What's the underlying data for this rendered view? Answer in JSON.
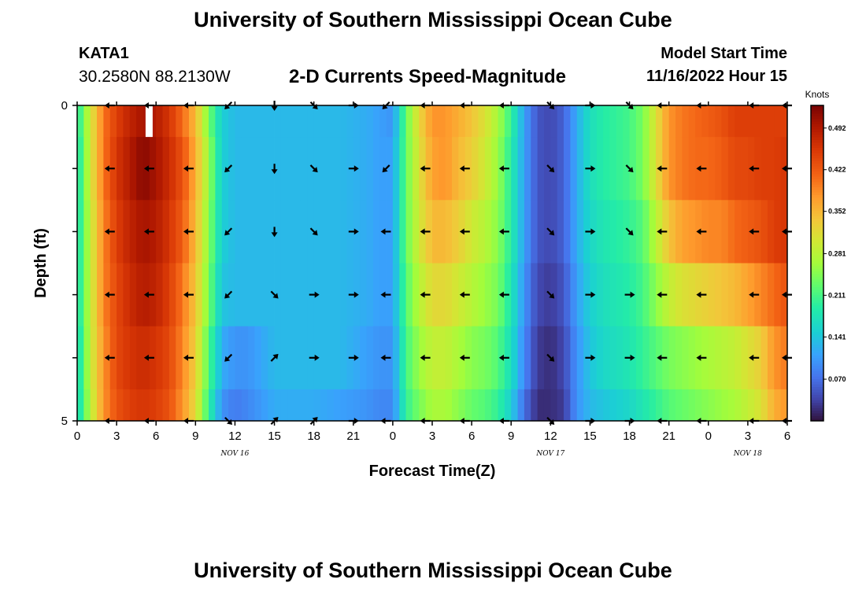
{
  "header": {
    "title": "University of Southern Mississippi Ocean Cube",
    "station_id": "KATA1",
    "station_coords": "30.2580N  88.2130W",
    "plot_title": "2-D Currents Speed-Magnitude",
    "model_start_label": "Model Start Time",
    "model_start_time": "11/16/2022 Hour 15"
  },
  "footer": {
    "title": "University of Southern Mississippi Ocean Cube"
  },
  "chart_data": {
    "type": "heatmap",
    "xlabel": "Forecast Time(Z)",
    "ylabel": "Depth (ft)",
    "x_tick_labels": [
      "0",
      "3",
      "6",
      "9",
      "12",
      "15",
      "18",
      "21",
      "0",
      "3",
      "6",
      "9",
      "12",
      "15",
      "18",
      "21",
      "0",
      "3",
      "6"
    ],
    "x_date_labels": [
      {
        "label": "NOV 16",
        "at_tick": 4
      },
      {
        "label": "NOV 17",
        "at_tick": 12
      },
      {
        "label": "NOV 18",
        "at_tick": 17
      }
    ],
    "y_range": [
      0,
      5
    ],
    "y_tick_labels": [
      {
        "depth": 0,
        "label": "0"
      },
      {
        "depth": 1,
        "label": ""
      },
      {
        "depth": 2,
        "label": ""
      },
      {
        "depth": 3,
        "label": ""
      },
      {
        "depth": 4,
        "label": ""
      },
      {
        "depth": 5,
        "label": "5"
      }
    ],
    "colorbar": {
      "units": "Knots",
      "min": 0.0,
      "max": 0.53,
      "ticks": [
        0.07,
        0.141,
        0.211,
        0.281,
        0.352,
        0.422,
        0.492
      ],
      "tick_labels": [
        "0.070",
        "0.141",
        "0.211",
        "0.281",
        "0.352",
        "0.422",
        "0.492"
      ]
    },
    "missing_data": {
      "hour": 5.5,
      "depth_range": [
        0,
        0.5
      ]
    },
    "speed_profile_keys": [
      {
        "h": 0,
        "s": [
          0.18,
          0.17,
          0.17,
          0.17,
          0.16,
          0.16
        ]
      },
      {
        "h": 1,
        "s": [
          0.3,
          0.3,
          0.29,
          0.29,
          0.29,
          0.28
        ]
      },
      {
        "h": 2,
        "s": [
          0.4,
          0.4,
          0.39,
          0.39,
          0.38,
          0.38
        ]
      },
      {
        "h": 3,
        "s": [
          0.45,
          0.46,
          0.45,
          0.44,
          0.44,
          0.43
        ]
      },
      {
        "h": 4,
        "s": [
          0.48,
          0.49,
          0.48,
          0.47,
          0.46,
          0.45
        ]
      },
      {
        "h": 5,
        "s": [
          0.5,
          0.52,
          0.5,
          0.49,
          0.47,
          0.46
        ]
      },
      {
        "h": 6,
        "s": [
          0.49,
          0.5,
          0.49,
          0.48,
          0.46,
          0.45
        ]
      },
      {
        "h": 7,
        "s": [
          0.46,
          0.47,
          0.46,
          0.45,
          0.44,
          0.43
        ]
      },
      {
        "h": 8,
        "s": [
          0.41,
          0.43,
          0.42,
          0.4,
          0.39,
          0.38
        ]
      },
      {
        "h": 9,
        "s": [
          0.35,
          0.36,
          0.35,
          0.34,
          0.33,
          0.32
        ]
      },
      {
        "h": 10,
        "s": [
          0.24,
          0.26,
          0.25,
          0.24,
          0.22,
          0.2
        ]
      },
      {
        "h": 11,
        "s": [
          0.15,
          0.15,
          0.15,
          0.14,
          0.12,
          0.1
        ]
      },
      {
        "h": 12,
        "s": [
          0.13,
          0.13,
          0.13,
          0.13,
          0.1,
          0.08
        ]
      },
      {
        "h": 13,
        "s": [
          0.13,
          0.13,
          0.13,
          0.13,
          0.1,
          0.09
        ]
      },
      {
        "h": 15,
        "s": [
          0.13,
          0.13,
          0.13,
          0.13,
          0.13,
          0.12
        ]
      },
      {
        "h": 18,
        "s": [
          0.13,
          0.13,
          0.13,
          0.13,
          0.13,
          0.12
        ]
      },
      {
        "h": 20,
        "s": [
          0.13,
          0.13,
          0.13,
          0.13,
          0.13,
          0.11
        ]
      },
      {
        "h": 22,
        "s": [
          0.12,
          0.12,
          0.12,
          0.12,
          0.11,
          0.1
        ]
      },
      {
        "h": 23,
        "s": [
          0.11,
          0.11,
          0.11,
          0.11,
          0.1,
          0.09
        ]
      },
      {
        "h": 24,
        "s": [
          0.1,
          0.11,
          0.11,
          0.11,
          0.1,
          0.09
        ]
      },
      {
        "h": 25,
        "s": [
          0.23,
          0.23,
          0.23,
          0.22,
          0.21,
          0.2
        ]
      },
      {
        "h": 26,
        "s": [
          0.32,
          0.31,
          0.3,
          0.28,
          0.26,
          0.24
        ]
      },
      {
        "h": 27,
        "s": [
          0.38,
          0.37,
          0.35,
          0.32,
          0.29,
          0.27
        ]
      },
      {
        "h": 28,
        "s": [
          0.38,
          0.38,
          0.35,
          0.32,
          0.29,
          0.27
        ]
      },
      {
        "h": 29,
        "s": [
          0.36,
          0.35,
          0.33,
          0.3,
          0.27,
          0.25
        ]
      },
      {
        "h": 30,
        "s": [
          0.34,
          0.33,
          0.3,
          0.28,
          0.25,
          0.23
        ]
      },
      {
        "h": 31,
        "s": [
          0.31,
          0.3,
          0.28,
          0.26,
          0.24,
          0.22
        ]
      },
      {
        "h": 32,
        "s": [
          0.27,
          0.26,
          0.25,
          0.24,
          0.22,
          0.2
        ]
      },
      {
        "h": 33,
        "s": [
          0.2,
          0.19,
          0.19,
          0.18,
          0.17,
          0.15
        ]
      },
      {
        "h": 34,
        "s": [
          0.11,
          0.11,
          0.11,
          0.1,
          0.09,
          0.07
        ]
      },
      {
        "h": 35,
        "s": [
          0.05,
          0.05,
          0.05,
          0.04,
          0.03,
          0.02
        ]
      },
      {
        "h": 36,
        "s": [
          0.04,
          0.04,
          0.04,
          0.03,
          0.02,
          0.02
        ]
      },
      {
        "h": 37,
        "s": [
          0.06,
          0.06,
          0.06,
          0.05,
          0.04,
          0.03
        ]
      },
      {
        "h": 38,
        "s": [
          0.12,
          0.12,
          0.12,
          0.11,
          0.1,
          0.1
        ]
      },
      {
        "h": 39,
        "s": [
          0.17,
          0.17,
          0.16,
          0.15,
          0.14,
          0.13
        ]
      },
      {
        "h": 40,
        "s": [
          0.19,
          0.19,
          0.18,
          0.17,
          0.16,
          0.14
        ]
      },
      {
        "h": 41,
        "s": [
          0.2,
          0.2,
          0.19,
          0.18,
          0.17,
          0.15
        ]
      },
      {
        "h": 42,
        "s": [
          0.21,
          0.21,
          0.2,
          0.19,
          0.18,
          0.16
        ]
      },
      {
        "h": 43,
        "s": [
          0.24,
          0.24,
          0.22,
          0.21,
          0.2,
          0.18
        ]
      },
      {
        "h": 44,
        "s": [
          0.31,
          0.31,
          0.28,
          0.25,
          0.22,
          0.2
        ]
      },
      {
        "h": 45,
        "s": [
          0.38,
          0.38,
          0.34,
          0.29,
          0.24,
          0.22
        ]
      },
      {
        "h": 46,
        "s": [
          0.4,
          0.4,
          0.37,
          0.31,
          0.25,
          0.23
        ]
      },
      {
        "h": 47,
        "s": [
          0.41,
          0.41,
          0.38,
          0.32,
          0.26,
          0.24
        ]
      },
      {
        "h": 48,
        "s": [
          0.42,
          0.41,
          0.39,
          0.33,
          0.27,
          0.25
        ]
      },
      {
        "h": 49,
        "s": [
          0.43,
          0.42,
          0.39,
          0.34,
          0.28,
          0.26
        ]
      },
      {
        "h": 50,
        "s": [
          0.45,
          0.44,
          0.41,
          0.35,
          0.29,
          0.27
        ]
      },
      {
        "h": 51,
        "s": [
          0.45,
          0.44,
          0.42,
          0.37,
          0.31,
          0.29
        ]
      },
      {
        "h": 52,
        "s": [
          0.45,
          0.45,
          0.43,
          0.39,
          0.33,
          0.31
        ]
      },
      {
        "h": 53,
        "s": [
          0.45,
          0.45,
          0.45,
          0.41,
          0.38,
          0.36
        ]
      },
      {
        "h": 54,
        "s": [
          0.45,
          0.46,
          0.46,
          0.43,
          0.4,
          0.38
        ]
      }
    ],
    "arrows": {
      "hours": [
        2.5,
        5.5,
        8.5,
        11.5,
        15,
        18,
        21,
        23.5,
        26.5,
        29.5,
        32.5,
        36,
        39,
        42,
        44.5,
        47.5,
        51.5,
        54
      ],
      "depths": [
        0,
        1,
        2,
        3,
        4,
        5
      ],
      "rows": [
        [
          "W",
          "W",
          "W",
          "SW",
          "S",
          "SE",
          "E",
          "SW",
          "W",
          "W",
          "W",
          "SE",
          "E",
          "SE",
          "W",
          "W",
          "W",
          "W"
        ],
        [
          "W",
          "W",
          "W",
          "SW",
          "S",
          "SE",
          "E",
          "SW",
          "W",
          "W",
          "W",
          "SE",
          "E",
          "SE",
          "W",
          "W",
          "W",
          "W"
        ],
        [
          "W",
          "W",
          "W",
          "SW",
          "S",
          "SE",
          "E",
          "W",
          "W",
          "W",
          "W",
          "SE",
          "E",
          "SE",
          "W",
          "W",
          "W",
          "W"
        ],
        [
          "W",
          "W",
          "W",
          "SW",
          "SE",
          "E",
          "E",
          "W",
          "W",
          "W",
          "W",
          "SE",
          "E",
          "E",
          "W",
          "W",
          "W",
          "W"
        ],
        [
          "W",
          "W",
          "W",
          "SW",
          "NE",
          "E",
          "E",
          "W",
          "W",
          "W",
          "W",
          "SE",
          "E",
          "E",
          "W",
          "W",
          "W",
          "W"
        ],
        [
          "W",
          "W",
          "W",
          "SE",
          "NE",
          "NE",
          "E",
          "W",
          "W",
          "W",
          "W",
          "SE",
          "E",
          "E",
          "W",
          "W",
          "W",
          "W"
        ]
      ]
    }
  }
}
